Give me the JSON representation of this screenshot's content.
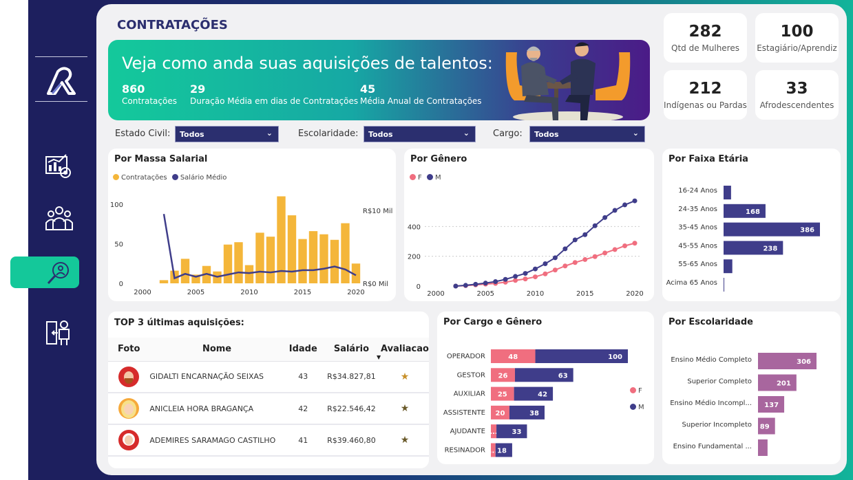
{
  "page_title": "CONTRATAÇÕES",
  "hero": {
    "headline": "Veja como anda suas aquisições de talentos:",
    "stats": [
      {
        "value": "860",
        "label": "Contratações"
      },
      {
        "value": "29",
        "label": "Duração Média em dias de Contratações"
      },
      {
        "value": "45",
        "label": "Média Anual de Contratações"
      }
    ]
  },
  "kpis": [
    {
      "value": "282",
      "label": "Qtd de Mulheres"
    },
    {
      "value": "100",
      "label": "Estagiário/Aprendiz"
    },
    {
      "value": "212",
      "label": "Indígenas ou Pardas"
    },
    {
      "value": "33",
      "label": "Afrodescendentes"
    }
  ],
  "filters": [
    {
      "label": "Estado Civil:",
      "value": "Todos"
    },
    {
      "label": "Escolaridade:",
      "value": "Todos"
    },
    {
      "label": "Cargo:",
      "value": "Todos"
    }
  ],
  "colors": {
    "accent": "#14c89a",
    "navy": "#3f3d8a",
    "gold": "#f4b63a",
    "pink": "#f06e7f",
    "mauve": "#a8669e"
  },
  "nav_icons": [
    "analytics-icon",
    "team-icon",
    "recruit-search-icon",
    "exit-badge-icon"
  ],
  "charts": {
    "massa": {
      "title": "Por Massa Salarial",
      "legend": [
        "Contratações",
        "Salário Médio"
      ]
    },
    "genero": {
      "title": "Por Gênero",
      "legend": [
        "F",
        "M"
      ]
    },
    "faixa": {
      "title": "Por Faixa Etária"
    },
    "cargo": {
      "title": "Por Cargo e Gênero",
      "legend": [
        "F",
        "M"
      ]
    },
    "escolaridade": {
      "title": "Por Escolaridade"
    }
  },
  "chart_data": [
    {
      "type": "bar",
      "title": "Por Massa Salarial",
      "x": [
        2002,
        2003,
        2004,
        2005,
        2006,
        2007,
        2008,
        2009,
        2010,
        2011,
        2012,
        2013,
        2014,
        2015,
        2016,
        2017,
        2018,
        2019,
        2020
      ],
      "series": [
        {
          "name": "Contratações",
          "values": [
            4,
            16,
            31,
            11,
            22,
            15,
            49,
            52,
            23,
            64,
            59,
            110,
            86,
            56,
            66,
            62,
            55,
            76,
            25
          ]
        },
        {
          "name": "Salário Médio",
          "values": [
            9500,
            700,
            1300,
            900,
            1300,
            900,
            1200,
            1500,
            1400,
            1600,
            1500,
            1700,
            1600,
            1800,
            1800,
            2000,
            2300,
            1900,
            1100
          ]
        }
      ],
      "y_left": {
        "ticks": [
          0,
          50,
          100
        ],
        "ylim": [
          0,
          120
        ]
      },
      "y_right": {
        "ticks": [
          "R$0 Mil",
          "R$10 Mil"
        ],
        "ylim": [
          0,
          13000
        ]
      },
      "x_ticks": [
        2000,
        2005,
        2010,
        2015,
        2020
      ]
    },
    {
      "type": "line",
      "title": "Por Gênero",
      "x": [
        2002,
        2003,
        2004,
        2005,
        2006,
        2007,
        2008,
        2009,
        2010,
        2011,
        2012,
        2013,
        2014,
        2015,
        2016,
        2017,
        2018,
        2019,
        2020
      ],
      "series": [
        {
          "name": "F",
          "values": [
            0,
            3,
            8,
            13,
            18,
            26,
            38,
            48,
            62,
            82,
            108,
            135,
            158,
            178,
            198,
            222,
            245,
            270,
            288
          ]
        },
        {
          "name": "M",
          "values": [
            0,
            5,
            12,
            20,
            30,
            45,
            65,
            85,
            115,
            150,
            190,
            250,
            310,
            345,
            405,
            460,
            508,
            545,
            572
          ]
        }
      ],
      "y_ticks": [
        0,
        200,
        400
      ],
      "ylim": [
        0,
        600
      ],
      "x_ticks": [
        2000,
        2005,
        2010,
        2015,
        2020
      ]
    },
    {
      "type": "bar",
      "title": "Por Faixa Etária",
      "categories": [
        "16-24 Anos",
        "24-35 Anos",
        "35-45 Anos",
        "45-55 Anos",
        "55-65 Anos",
        "Acima 65 Anos"
      ],
      "values": [
        30,
        168,
        386,
        238,
        35,
        2
      ],
      "labels": [
        "",
        "168",
        "386",
        "238",
        "",
        ""
      ]
    },
    {
      "type": "bar",
      "title": "Por Cargo e Gênero",
      "categories": [
        "OPERADOR",
        "GESTOR",
        "AUXILIAR",
        "ASSISTENTE",
        "AJUDANTE",
        "RESINADOR"
      ],
      "series": [
        {
          "name": "F",
          "values": [
            48,
            26,
            25,
            20,
            6,
            5
          ],
          "labels": [
            "48",
            "26",
            "25",
            "20",
            "...",
            "..."
          ]
        },
        {
          "name": "M",
          "values": [
            100,
            63,
            42,
            38,
            33,
            18
          ],
          "labels": [
            "100",
            "63",
            "42",
            "38",
            "33",
            "18"
          ]
        }
      ]
    },
    {
      "type": "bar",
      "title": "Por Escolaridade",
      "categories": [
        "Ensino Médio Completo",
        "Superior Completo",
        "Ensino Médio Incompl...",
        "Superior Incompleto",
        "Ensino Fundamental ..."
      ],
      "values": [
        306,
        201,
        137,
        89,
        50
      ],
      "labels": [
        "306",
        "201",
        "137",
        "89",
        ""
      ]
    }
  ],
  "top3": {
    "title": "TOP 3 últimas aquisições:",
    "columns": [
      "Foto",
      "Nome",
      "Idade",
      "Salário",
      "Avaliacao"
    ],
    "rows": [
      {
        "nome": "GIDALTI ENCARNAÇÃO SEIXAS",
        "idade": "43",
        "salario": "R$34.827,81",
        "rating": "★"
      },
      {
        "nome": "ANICLEIA HORA BRAGANÇA",
        "idade": "42",
        "salario": "R$22.546,42",
        "rating": "★"
      },
      {
        "nome": "ADEMIRES SARAMAGO CASTILHO",
        "idade": "41",
        "salario": "R$39.460,80",
        "rating": "★"
      }
    ]
  }
}
